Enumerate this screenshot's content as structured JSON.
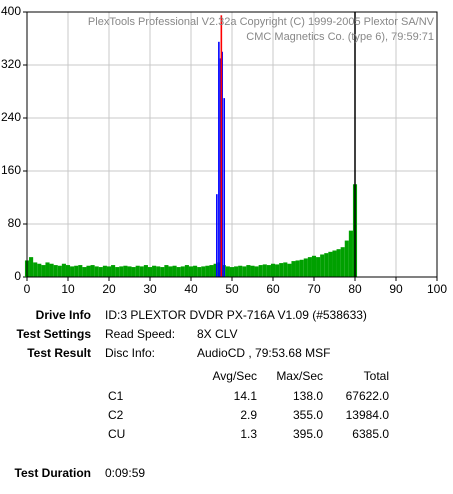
{
  "chart_data": {
    "type": "bar",
    "header": [
      "PlexTools Professional V2.32a Copyright (C) 1999-2005 Plextor SA/NV",
      "CMC Magnetics Co. (type 6), 79:59:71"
    ],
    "xlim": [
      0,
      100
    ],
    "xticks": [
      0,
      10,
      20,
      30,
      40,
      50,
      60,
      70,
      80,
      90,
      100
    ],
    "ylim": [
      0,
      400
    ],
    "yticks": [
      0,
      80,
      160,
      240,
      320,
      400
    ],
    "grid": true,
    "end_marker": 80,
    "end_marker_color": "#000000",
    "series": [
      {
        "name": "C1",
        "color": "#00a000",
        "x": [
          0,
          1,
          2,
          3,
          4,
          5,
          6,
          7,
          8,
          9,
          10,
          11,
          12,
          13,
          14,
          15,
          16,
          17,
          18,
          19,
          20,
          21,
          22,
          23,
          24,
          25,
          26,
          27,
          28,
          29,
          30,
          31,
          32,
          33,
          34,
          35,
          36,
          37,
          38,
          39,
          40,
          41,
          42,
          43,
          44,
          45,
          46,
          47,
          48,
          49,
          50,
          51,
          52,
          53,
          54,
          55,
          56,
          57,
          58,
          59,
          60,
          61,
          62,
          63,
          64,
          65,
          66,
          67,
          68,
          69,
          70,
          71,
          72,
          73,
          74,
          75,
          76,
          77,
          78,
          79,
          80
        ],
        "values": [
          25,
          30,
          22,
          20,
          18,
          22,
          20,
          18,
          17,
          20,
          18,
          16,
          17,
          18,
          15,
          17,
          18,
          16,
          15,
          17,
          16,
          18,
          15,
          16,
          17,
          16,
          15,
          17,
          16,
          18,
          15,
          17,
          16,
          15,
          18,
          16,
          17,
          15,
          16,
          18,
          16,
          17,
          15,
          16,
          17,
          18,
          20,
          22,
          18,
          16,
          15,
          16,
          17,
          16,
          18,
          17,
          16,
          18,
          19,
          18,
          20,
          19,
          21,
          22,
          20,
          24,
          25,
          26,
          28,
          30,
          32,
          30,
          34,
          36,
          38,
          40,
          42,
          45,
          55,
          70,
          140
        ]
      },
      {
        "name": "C2",
        "color": "#0000ff",
        "x": [
          46.3,
          46.8,
          47.2,
          47.6,
          48.1
        ],
        "values": [
          125,
          355,
          330,
          340,
          270
        ]
      },
      {
        "name": "CU",
        "color": "#ff0000",
        "x": [
          47.4
        ],
        "values": [
          395
        ]
      }
    ]
  },
  "info": {
    "drive_label": "Drive Info",
    "drive_value": "ID:3 PLEXTOR DVDR PX-716A V1.09 (#538633)",
    "settings_label": "Test Settings",
    "settings_key": "Read Speed:",
    "settings_value": "8X CLV",
    "result_label": "Test Result",
    "result_key": "Disc Info:",
    "result_value": "AudioCD , 79:53.68 MSF",
    "table": {
      "header": [
        "Avg/Sec",
        "Max/Sec",
        "Total"
      ],
      "rows": [
        [
          "C1",
          "14.1",
          "138.0",
          "67622.0"
        ],
        [
          "C2",
          "2.9",
          "355.0",
          "13984.0"
        ],
        [
          "CU",
          "1.3",
          "395.0",
          "6385.0"
        ]
      ]
    },
    "duration_label": "Test Duration",
    "duration_value": "0:09:59"
  }
}
